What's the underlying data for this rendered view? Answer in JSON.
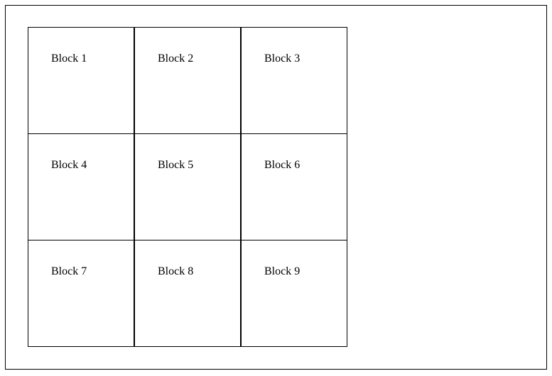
{
  "grid": {
    "blocks": [
      {
        "label": "Block 1"
      },
      {
        "label": "Block 2"
      },
      {
        "label": "Block 3"
      },
      {
        "label": "Block 4"
      },
      {
        "label": "Block 5"
      },
      {
        "label": "Block 6"
      },
      {
        "label": "Block 7"
      },
      {
        "label": "Block 8"
      },
      {
        "label": "Block 9"
      }
    ]
  },
  "colors": {
    "border": "#000000",
    "background": "#ffffff",
    "text": "#000000"
  }
}
